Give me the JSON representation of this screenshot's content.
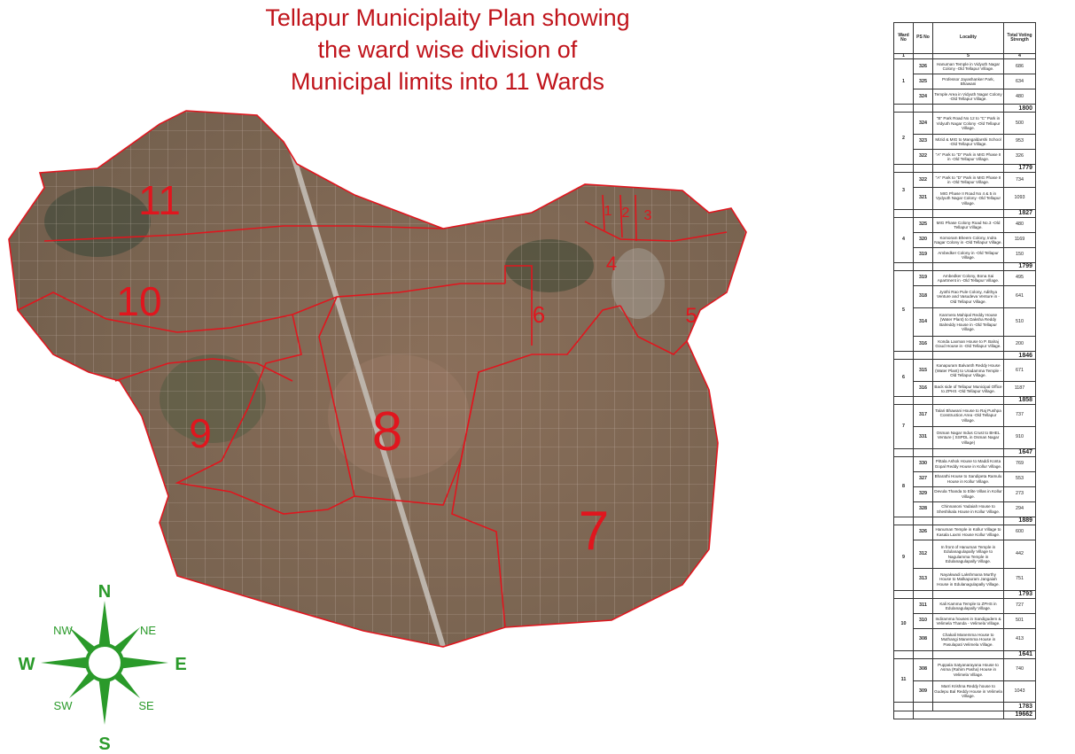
{
  "title": [
    "Tellapur  Municiplaity Plan showing",
    "the ward wise division of",
    "Municipal limits into 11 Wards"
  ],
  "map": {
    "ward_labels": [
      "1",
      "2",
      "3",
      "4",
      "5",
      "6",
      "7",
      "8",
      "9",
      "10",
      "11"
    ],
    "boundary_color": "#e0161e",
    "label_color": "#e0161e"
  },
  "compass": {
    "color": "#2a9a2a",
    "N": "N",
    "S": "S",
    "E": "E",
    "W": "W",
    "NE": "NE",
    "NW": "NW",
    "SE": "SE",
    "SW": "SW"
  },
  "table": {
    "headers": [
      "Ward No",
      "PS No",
      "Locality",
      "Total Voting Strength"
    ],
    "index_row": [
      "1",
      "",
      "5",
      "4"
    ],
    "wards": [
      {
        "ward": "1",
        "total": "1800",
        "rows": [
          {
            "ps": "326",
            "locality": "Hanuman Temple in Vidyuth Nagar Colony -Old Tellapur Village.",
            "votes": "686"
          },
          {
            "ps": "325",
            "locality": "Professor Jayashanker Park, Bhawani",
            "votes": "634"
          },
          {
            "ps": "324",
            "locality": "Temple Area in Vidyuth Nagar Colony -Old Tellapur Village.",
            "votes": "480"
          }
        ]
      },
      {
        "ward": "2",
        "total": "1779",
        "rows": [
          {
            "ps": "324",
            "locality": "\"B\" Park Road No 12 to \"C\" Park in Vidyuth Nagar Colony -Old Tellapur Village.",
            "votes": "500"
          },
          {
            "ps": "323",
            "locality": "Mizid & MIG to Mangaldarshi School -Old Tellapur Village.",
            "votes": "953"
          },
          {
            "ps": "322",
            "locality": "\"A\" Park to \"D\" Park in MIG Phase II in -Old Tellapur Village.",
            "votes": "326"
          }
        ]
      },
      {
        "ward": "3",
        "total": "1827",
        "rows": [
          {
            "ps": "322",
            "locality": "\"A\" Park to \"D\" Park in MIG Phase II in -Old Tellapur Village.",
            "votes": "734"
          },
          {
            "ps": "321",
            "locality": "MIG Phase II Road No 4 & 5 in Vydyuth Nagar Colony -Old Tellapur Village.",
            "votes": "1093"
          }
        ]
      },
      {
        "ward": "4",
        "total": "1799",
        "rows": [
          {
            "ps": "325",
            "locality": "MIG Phase Colony Road No.3 -Old Tellapur Village.",
            "votes": "480"
          },
          {
            "ps": "320",
            "locality": "Komoram Bheem Colony, Indra Nagar Colony in -Old Tellapur Village.",
            "votes": "1169"
          },
          {
            "ps": "319",
            "locality": "Ambedker Colony in -Old Tellapur Village.",
            "votes": "150"
          }
        ]
      },
      {
        "ward": "5",
        "total": "1846",
        "rows": [
          {
            "ps": "319",
            "locality": "Ambedker Colony, Bona Sai Apartment in -Old Tellapur Village.",
            "votes": "495"
          },
          {
            "ps": "318",
            "locality": "Jyothi Rao Pule Colony, Adithya Venture and Vasudeva Venture in -Old Tellapur Village.",
            "votes": "641"
          },
          {
            "ps": "314",
            "locality": "Kanmera Mahipal Reddy House (Water Plant) to Daksha Reddy Balreddy House in -Old Tellapur Village.",
            "votes": "510"
          },
          {
            "ps": "316",
            "locality": "Konda Laxman House to P. Balraj Goud House in -Old Tellapur Village.",
            "votes": "200"
          }
        ]
      },
      {
        "ward": "6",
        "total": "1858",
        "rows": [
          {
            "ps": "315",
            "locality": "Kanapuram Balvanth Reddy House (Water Plant) to Uradamma Temple -Old Tellapur Village.",
            "votes": "671"
          },
          {
            "ps": "316",
            "locality": "Back side of Tellapur Municipal Office to ZPHS -Old Tellapur Village.",
            "votes": "1187"
          }
        ]
      },
      {
        "ward": "7",
        "total": "1647",
        "rows": [
          {
            "ps": "317",
            "locality": "Talari Bhawani House to Raj Pushpa Construction Area -Old Tellapur Village.",
            "votes": "737"
          },
          {
            "ps": "331",
            "locality": "Osman Nagar Indus Crust to BHEL Venture ( SSPDL in Osman Nagar Village)",
            "votes": "910"
          }
        ]
      },
      {
        "ward": "8",
        "total": "1889",
        "rows": [
          {
            "ps": "330",
            "locality": "Pittala Ashok House to Maddi Konta Gopal Reddy House in Kollur Village.",
            "votes": "769"
          },
          {
            "ps": "327",
            "locality": "Bharathi House to Sandipeta Ramulu House in Kollur Village.",
            "votes": "553"
          },
          {
            "ps": "329",
            "locality": "Devula Thanda to Elite Villas in Kollur Village.",
            "votes": "273"
          },
          {
            "ps": "328",
            "locality": "Chinnanoni Yadaiah House to Sheshikala House in Kollur Village.",
            "votes": "294"
          }
        ]
      },
      {
        "ward": "9",
        "total": "1793",
        "rows": [
          {
            "ps": "326",
            "locality": "Hanuman Temple in Kollur Village to Kasala Laxmi House Kollur Village.",
            "votes": "600"
          },
          {
            "ps": "312",
            "locality": "In front of Hanuman Temple in Edulanagulapally Village to Nagulamma Temple in Edulanagulapally Village.",
            "votes": "442"
          },
          {
            "ps": "313",
            "locality": "Nayakwadi Lakshmana Murthy House to Malkapuram Jangaiah House in Edulanagulapally Village.",
            "votes": "751"
          }
        ]
      },
      {
        "ward": "10",
        "total": "1641",
        "rows": [
          {
            "ps": "311",
            "locality": "Kali Kamma Temple to ZPHS in Edulanagulapally Village.",
            "votes": "727"
          },
          {
            "ps": "310",
            "locality": "Indiramma houses in Sandigudem & Velimela Thanda - Velimela Village.",
            "votes": "501"
          },
          {
            "ps": "308",
            "locality": "Chakali Manemma House to Muthangi Manemma House in Pasulapati Velimela Village.",
            "votes": "413"
          }
        ]
      },
      {
        "ward": "11",
        "total": "1783",
        "rows": [
          {
            "ps": "308",
            "locality": "Puppala Satyanarayana House to Asma (Rahim Pasha) House in Velimela Village.",
            "votes": "740"
          },
          {
            "ps": "309",
            "locality": "Marri Krishna Reddy house to Gudepu Bal Reddy House in Velimela Village.",
            "votes": "1043"
          }
        ]
      }
    ],
    "grand_total": "19662"
  }
}
